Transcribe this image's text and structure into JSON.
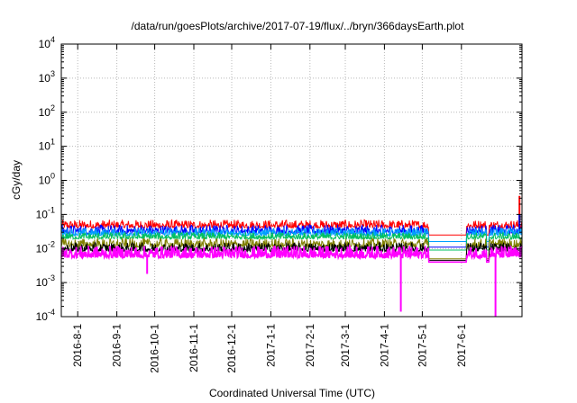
{
  "chart_data": {
    "type": "line",
    "title": "/data/run/goesPlots/archive/2017-07-19/flux/../bryn/366daysEarth.plot",
    "xlabel": "Coordinated Universal Time (UTC)",
    "ylabel": "cGy/day",
    "yscale": "log",
    "ylim": [
      0.0001,
      10000
    ],
    "xlim": [
      "2016-07-19",
      "2017-07-19"
    ],
    "grid": true,
    "y_ticks": [
      {
        "base": "10",
        "exp": "-4",
        "value": 0.0001
      },
      {
        "base": "10",
        "exp": "-3",
        "value": 0.001
      },
      {
        "base": "10",
        "exp": "-2",
        "value": 0.01
      },
      {
        "base": "10",
        "exp": "-1",
        "value": 0.1
      },
      {
        "base": "10",
        "exp": "0",
        "value": 1
      },
      {
        "base": "10",
        "exp": "1",
        "value": 10
      },
      {
        "base": "10",
        "exp": "2",
        "value": 100
      },
      {
        "base": "10",
        "exp": "3",
        "value": 1000
      },
      {
        "base": "10",
        "exp": "4",
        "value": 10000
      }
    ],
    "x_ticks": [
      {
        "label": "2016-8-1",
        "date": "2016-08-01"
      },
      {
        "label": "2016-9-1",
        "date": "2016-09-01"
      },
      {
        "label": "2016-10-1",
        "date": "2016-10-01"
      },
      {
        "label": "2016-11-1",
        "date": "2016-11-01"
      },
      {
        "label": "2016-12-1",
        "date": "2016-12-01"
      },
      {
        "label": "2017-1-1",
        "date": "2017-01-01"
      },
      {
        "label": "2017-2-1",
        "date": "2017-02-01"
      },
      {
        "label": "2017-3-1",
        "date": "2017-03-01"
      },
      {
        "label": "2017-4-1",
        "date": "2017-04-01"
      },
      {
        "label": "2017-5-1",
        "date": "2017-05-01"
      },
      {
        "label": "2017-6-1",
        "date": "2017-06-01"
      }
    ],
    "series": [
      {
        "color": "#ff0000",
        "typical": [
          0.03,
          0.07
        ],
        "gap_value": 0.025,
        "spikes": [
          {
            "date": "2017-07-17",
            "value": 0.35
          }
        ]
      },
      {
        "color": "#0000ff",
        "typical": [
          0.02,
          0.05
        ],
        "gap_value": 0.011,
        "spikes": [
          {
            "date": "2017-07-17",
            "value": 0.1
          }
        ]
      },
      {
        "color": "#00a0ff",
        "typical": [
          0.018,
          0.04
        ],
        "gap_value": 0.016,
        "spikes": []
      },
      {
        "color": "#00c060",
        "typical": [
          0.015,
          0.03
        ],
        "gap_value": 0.009,
        "spikes": []
      },
      {
        "color": "#808000",
        "typical": [
          0.008,
          0.02
        ],
        "gap_value": 0.005,
        "spikes": []
      },
      {
        "color": "#000000",
        "typical": [
          0.006,
          0.015
        ],
        "gap_value": 0.0045,
        "spikes": []
      },
      {
        "color": "#ff00ff",
        "typical": [
          0.0035,
          0.012
        ],
        "gap_value": 0.004,
        "spikes": [
          {
            "date": "2016-09-25",
            "value": 0.0018
          },
          {
            "date": "2017-04-14",
            "value": 0.00014
          },
          {
            "date": "2017-06-28",
            "value": 0.0001
          }
        ]
      }
    ],
    "data_gaps": [
      {
        "start": "2017-05-06",
        "end": "2017-06-05"
      },
      {
        "start": "2017-06-21",
        "end": "2017-06-23"
      }
    ]
  }
}
